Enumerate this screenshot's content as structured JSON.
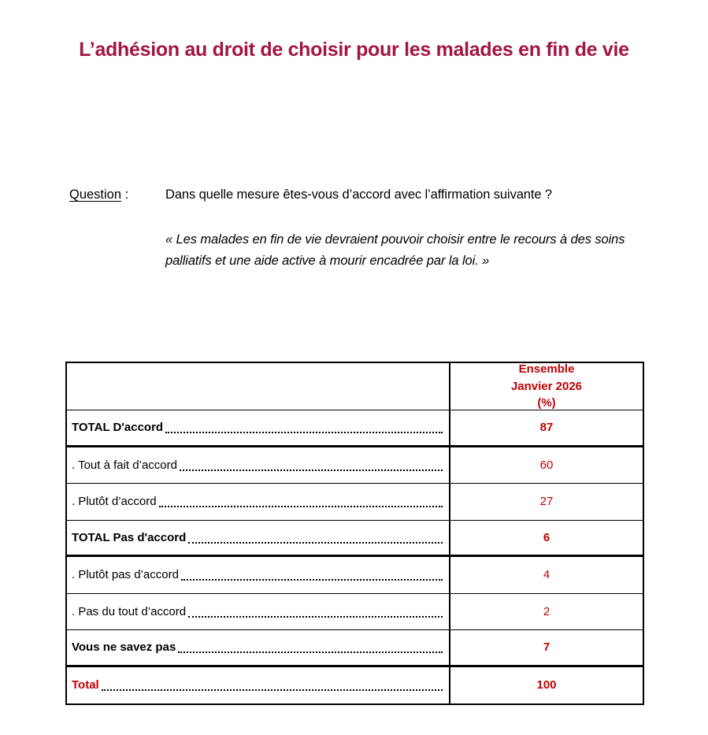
{
  "page": {
    "title": "L’adhésion au droit de choisir pour les malades en fin de vie"
  },
  "question": {
    "label": "Question",
    "colon": " :",
    "text": "Dans quelle mesure êtes-vous d’accord avec l’affirmation suivante ?",
    "quote": "« Les malades en fin de vie devraient pouvoir choisir entre le recours à des soins palliatifs et une aide active à mourir encadrée par la loi. »"
  },
  "table": {
    "header": {
      "line1": "Ensemble",
      "line2": "Janvier 2026",
      "line3": "(%)"
    },
    "rows": [
      {
        "label": "TOTAL D'accord",
        "value": "87"
      },
      {
        "label": ". Tout à fait d’accord ",
        "value": "60"
      },
      {
        "label": ". Plutôt d’accord ",
        "value": "27"
      },
      {
        "label": "TOTAL Pas d'accord ",
        "value": "6"
      },
      {
        "label": ". Plutôt pas d’accord",
        "value": "4"
      },
      {
        "label": ". Pas du tout d’accord",
        "value": "2"
      },
      {
        "label": "Vous ne savez pas",
        "value": "7"
      },
      {
        "label": "Total ",
        "value": "100"
      }
    ]
  },
  "colors": {
    "title_crimson": "#A21646",
    "accent_red": "#C00000",
    "text_black": "#000000"
  }
}
